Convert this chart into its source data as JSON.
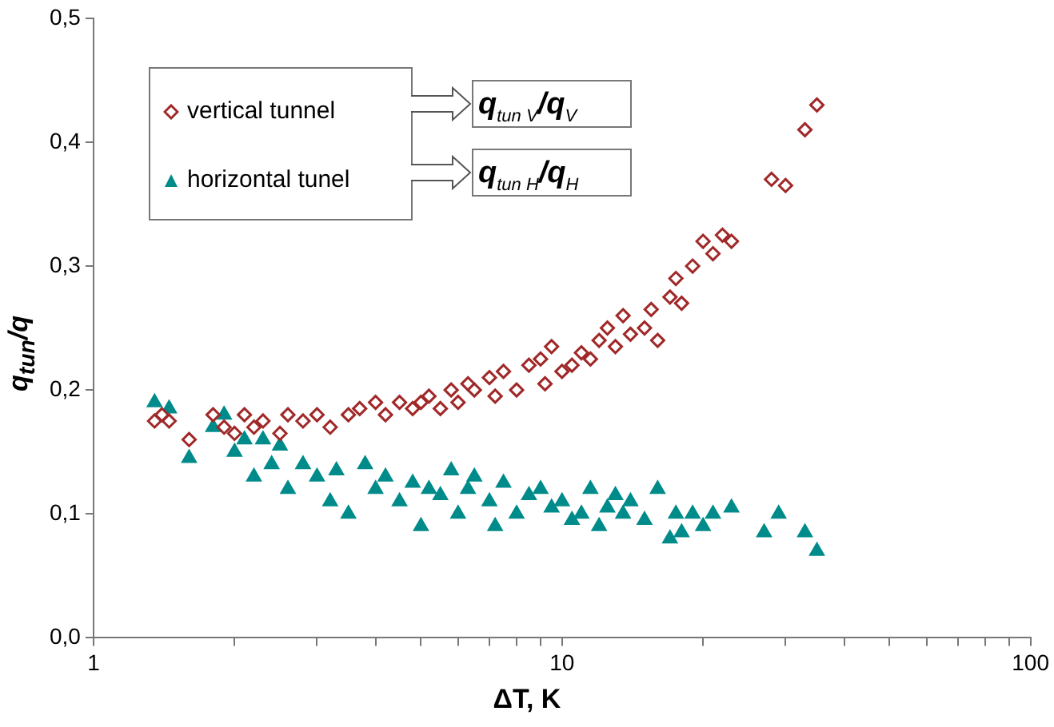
{
  "chart_data": {
    "type": "scatter",
    "xlabel": "ΔT, K",
    "ylabel": "q$_{tun}$/q",
    "log": "x",
    "grid": false,
    "legend": "top left",
    "xlim": [
      1,
      100
    ],
    "xticks": [
      1,
      {
        "value": 2,
        "label": null
      },
      {
        "value": 3,
        "label": null
      },
      {
        "value": 4,
        "label": null
      },
      {
        "value": 5,
        "label": null
      },
      {
        "value": 6,
        "label": null
      },
      {
        "value": 7,
        "label": null
      },
      {
        "value": 8,
        "label": null
      },
      {
        "value": 9,
        "label": null
      },
      10,
      {
        "value": 20,
        "label": null
      },
      {
        "value": 30,
        "label": null
      },
      {
        "value": 40,
        "label": null
      },
      {
        "value": 50,
        "label": null
      },
      {
        "value": 60,
        "label": null
      },
      {
        "value": 70,
        "label": null
      },
      {
        "value": 80,
        "label": null
      },
      {
        "value": 90,
        "label": null
      },
      100
    ],
    "ylim": [
      0,
      0.5
    ],
    "yticks": [
      {
        "value": 0,
        "label": "0,0"
      },
      {
        "value": 0.1,
        "label": "0,1"
      },
      {
        "value": 0.2,
        "label": "0,2"
      },
      {
        "value": 0.3,
        "label": "0,3"
      },
      {
        "value": 0.4,
        "label": "0,4"
      },
      {
        "value": 0.5,
        "label": "0,5"
      }
    ],
    "annotations": [
      "q$_{tun V}$/q$_{V}$",
      "q$_{tun H}$/q$_{H}$"
    ],
    "series": [
      {
        "name": "vertical tunnel",
        "color": "#a02828",
        "marker": "diamond",
        "x": [
          1.35,
          1.4,
          1.45,
          1.6,
          1.8,
          1.9,
          2.0,
          2.1,
          2.2,
          2.3,
          2.5,
          2.6,
          2.8,
          3.0,
          3.2,
          3.5,
          3.7,
          4.0,
          4.2,
          4.5,
          4.8,
          5.0,
          5.2,
          5.5,
          5.8,
          6.0,
          6.3,
          6.5,
          7.0,
          7.2,
          7.5,
          8.0,
          8.5,
          9.0,
          9.2,
          9.5,
          10,
          10.5,
          11,
          11.5,
          12,
          12.5,
          13,
          13.5,
          14,
          15,
          15.5,
          16,
          17,
          17.5,
          18,
          19,
          20,
          21,
          22,
          23,
          28,
          30,
          33,
          35
        ],
        "values": [
          0.175,
          0.18,
          0.175,
          0.16,
          0.18,
          0.17,
          0.165,
          0.18,
          0.17,
          0.175,
          0.165,
          0.18,
          0.175,
          0.18,
          0.17,
          0.18,
          0.185,
          0.19,
          0.18,
          0.19,
          0.185,
          0.19,
          0.195,
          0.185,
          0.2,
          0.19,
          0.205,
          0.2,
          0.21,
          0.195,
          0.215,
          0.2,
          0.22,
          0.225,
          0.205,
          0.235,
          0.215,
          0.22,
          0.23,
          0.225,
          0.24,
          0.25,
          0.235,
          0.26,
          0.245,
          0.25,
          0.265,
          0.24,
          0.275,
          0.29,
          0.27,
          0.3,
          0.32,
          0.31,
          0.325,
          0.32,
          0.37,
          0.365,
          0.41,
          0.43
        ]
      },
      {
        "name": "horizontal tunel",
        "color": "#008b8b",
        "marker": "triangle",
        "x": [
          1.35,
          1.45,
          1.6,
          1.8,
          1.9,
          2.0,
          2.1,
          2.2,
          2.3,
          2.4,
          2.5,
          2.6,
          2.8,
          3.0,
          3.2,
          3.3,
          3.5,
          3.8,
          4.0,
          4.2,
          4.5,
          4.8,
          5.0,
          5.2,
          5.5,
          5.8,
          6.0,
          6.3,
          6.5,
          7.0,
          7.2,
          7.5,
          8.0,
          8.5,
          9.0,
          9.5,
          10,
          10.5,
          11,
          11.5,
          12,
          12.5,
          13,
          13.5,
          14,
          15,
          16,
          17,
          17.5,
          18,
          19,
          20,
          21,
          23,
          27,
          29,
          33,
          35
        ],
        "values": [
          0.19,
          0.185,
          0.145,
          0.17,
          0.18,
          0.15,
          0.16,
          0.13,
          0.16,
          0.14,
          0.155,
          0.12,
          0.14,
          0.13,
          0.11,
          0.135,
          0.1,
          0.14,
          0.12,
          0.13,
          0.11,
          0.125,
          0.09,
          0.12,
          0.115,
          0.135,
          0.1,
          0.12,
          0.13,
          0.11,
          0.09,
          0.125,
          0.1,
          0.115,
          0.12,
          0.105,
          0.11,
          0.095,
          0.1,
          0.12,
          0.09,
          0.105,
          0.115,
          0.1,
          0.11,
          0.095,
          0.12,
          0.08,
          0.1,
          0.085,
          0.1,
          0.09,
          0.1,
          0.105,
          0.085,
          0.1,
          0.085,
          0.07
        ]
      }
    ]
  }
}
